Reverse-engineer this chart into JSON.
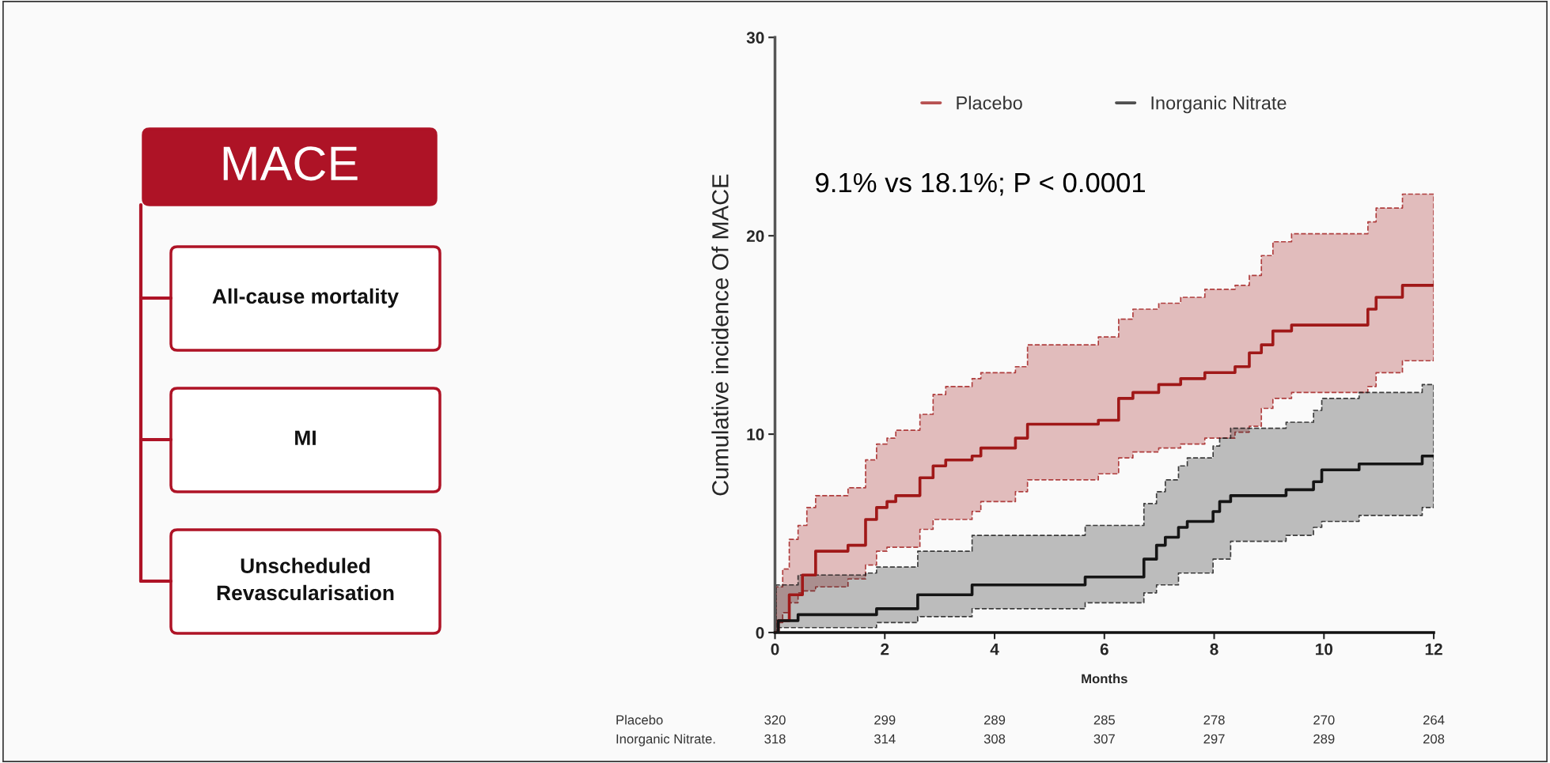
{
  "chart_data": [
    {
      "type": "other",
      "title": "MACE",
      "color": "#ae1326",
      "annotations": [
        "All-cause mortality",
        "MI",
        "Unscheduled\nRevascularisation"
      ]
    },
    {
      "type": "step",
      "ylabel": "Cumulative incidence Of MACE",
      "xlabel": "Months",
      "xlim": [
        0,
        12
      ],
      "xticks": [
        0,
        2,
        4,
        6,
        8,
        10,
        12
      ],
      "ylim": [
        0,
        30
      ],
      "yticks": [
        0,
        10,
        20,
        30
      ],
      "legend": "top",
      "grid": false,
      "line_style": "solid",
      "series": [
        {
          "name": "Placebo",
          "color": "#a01818",
          "x": [
            0,
            0.02,
            0.06,
            0.14,
            0.26,
            0.3,
            0.42,
            0.5,
            0.58,
            0.74,
            0.78,
            1.33,
            1.65,
            1.85,
            2.04,
            2.2,
            2.64,
            2.88,
            3.11,
            3.59,
            3.75,
            4.38,
            4.6,
            5.89,
            6.26,
            6.52,
            6.99,
            7.39,
            7.83,
            8.38,
            8.64,
            8.86,
            9.07,
            9.41,
            10.8,
            10.95,
            11.43,
            12
          ],
          "values": [
            0,
            0,
            0.6,
            0.6,
            1.9,
            1.9,
            1.9,
            2.9,
            2.9,
            4.1,
            4.1,
            4.4,
            5.7,
            6.3,
            6.6,
            6.9,
            7.8,
            8.4,
            8.7,
            8.9,
            9.3,
            9.8,
            10.5,
            10.7,
            11.8,
            12.1,
            12.5,
            12.8,
            13.1,
            13.4,
            14.1,
            14.5,
            15.2,
            15.5,
            16.3,
            16.9,
            17.5,
            17.5
          ],
          "upper": [
            0,
            2.3,
            2.3,
            3.2,
            4.7,
            4.7,
            5.4,
            5.4,
            6.3,
            6.9,
            6.9,
            7.3,
            8.7,
            9.5,
            9.8,
            10.2,
            11.0,
            12.0,
            12.4,
            12.8,
            13.1,
            13.4,
            14.5,
            14.9,
            15.8,
            16.3,
            16.6,
            16.9,
            17.3,
            17.5,
            18.0,
            19.0,
            19.7,
            20.1,
            20.7,
            21.4,
            22.1,
            22.1
          ],
          "lower": [
            0,
            0.5,
            0.5,
            1.0,
            1.5,
            1.5,
            2.0,
            2.1,
            2.1,
            2.3,
            2.3,
            2.7,
            3.4,
            4.1,
            4.3,
            4.3,
            5.2,
            5.7,
            5.7,
            6.1,
            6.6,
            7.1,
            7.7,
            8.0,
            8.8,
            9.1,
            9.3,
            9.5,
            9.8,
            10.1,
            10.4,
            11.3,
            11.8,
            12.1,
            12.4,
            13.1,
            13.7,
            13.7
          ]
        },
        {
          "name": "Inorganic Nitrate",
          "color": "#151515",
          "x": [
            0,
            0.02,
            0.06,
            0.42,
            1.65,
            1.85,
            2.6,
            3.59,
            5.65,
            6.72,
            6.95,
            7.11,
            7.35,
            7.51,
            7.98,
            8.1,
            8.3,
            9.31,
            9.81,
            9.96,
            10.64,
            11.79,
            12
          ],
          "values": [
            0,
            0,
            0.6,
            0.9,
            0.9,
            1.2,
            1.9,
            2.4,
            2.8,
            3.7,
            4.4,
            4.8,
            5.3,
            5.6,
            6.1,
            6.6,
            6.9,
            7.2,
            7.6,
            8.2,
            8.5,
            8.9,
            8.9
          ],
          "upper": [
            0,
            2.4,
            2.4,
            2.9,
            3.0,
            3.3,
            4.1,
            4.9,
            5.4,
            6.5,
            7.1,
            7.7,
            8.4,
            8.8,
            9.4,
            9.8,
            10.3,
            10.6,
            11.2,
            11.8,
            12.1,
            12.5,
            12.5
          ],
          "lower": [
            0,
            0.25,
            0.25,
            0.25,
            0.25,
            0.5,
            0.8,
            1.2,
            1.5,
            2.0,
            2.4,
            2.4,
            3.0,
            3.0,
            3.7,
            3.7,
            4.6,
            4.9,
            5.3,
            5.6,
            5.9,
            6.3,
            6.3
          ]
        }
      ],
      "annotations": [
        "9.1% vs 18.1%; P < 0.0001",
        "Placebo",
        "320",
        "299",
        "289",
        "285",
        "278",
        "270",
        "264",
        "Inorganic Nitrate.",
        "318",
        "314",
        "308",
        "307",
        "297",
        "289",
        "208"
      ]
    }
  ]
}
